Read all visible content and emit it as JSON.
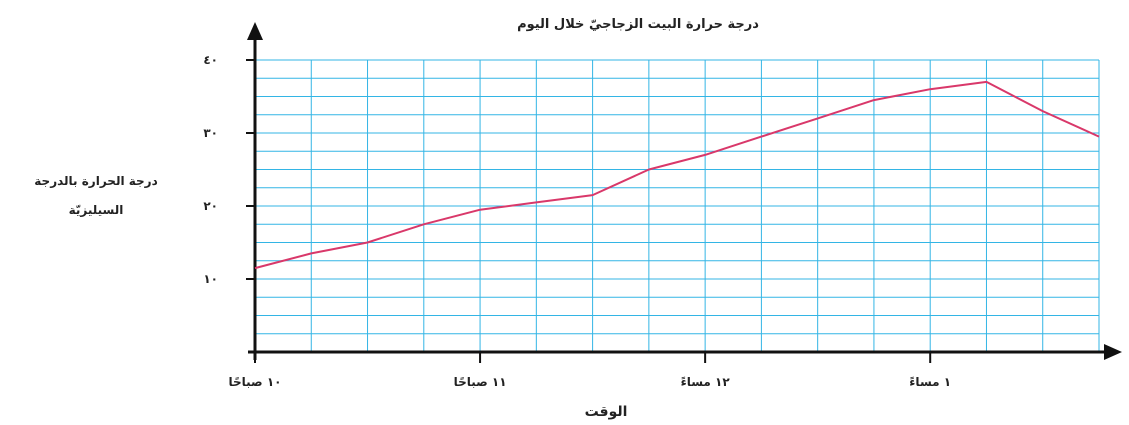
{
  "chart_data": {
    "type": "line",
    "title": "درجة حرارة البيت الزجاجيّ خلال اليوم",
    "xlabel": "الوقت",
    "ylabel_line1": "درجة الحرارة بالدرجة",
    "ylabel_line2": "السيليزيّة",
    "x_tick_labels": [
      {
        "x": 10,
        "label": "١٠ صباحًا"
      },
      {
        "x": 11,
        "label": "١١ صباحًا"
      },
      {
        "x": 12,
        "label": "١٢ مساءً"
      },
      {
        "x": 13,
        "label": "١ مساءً"
      }
    ],
    "y_tick_labels": [
      {
        "y": 10,
        "label": "١٠"
      },
      {
        "y": 20,
        "label": "٢٠"
      },
      {
        "y": 30,
        "label": "٣٠"
      },
      {
        "y": 40,
        "label": "٤٠"
      }
    ],
    "xlim": [
      10,
      13.75
    ],
    "ylim": [
      0,
      40
    ],
    "grid": true,
    "colors": {
      "line": "#d9386a",
      "grid": "#33b5e5",
      "axis": "#111111"
    },
    "series": [
      {
        "x": [
          10,
          10.25,
          10.5,
          10.75,
          11,
          11.25,
          11.5,
          11.75,
          12,
          12.25,
          12.5,
          12.75,
          13,
          13.25,
          13.5,
          13.75
        ],
        "y": [
          11.5,
          13.5,
          15,
          17.5,
          19.5,
          20.5,
          21.5,
          25,
          27,
          29.5,
          32,
          34.5,
          36,
          37,
          33,
          29.5
        ]
      }
    ]
  }
}
